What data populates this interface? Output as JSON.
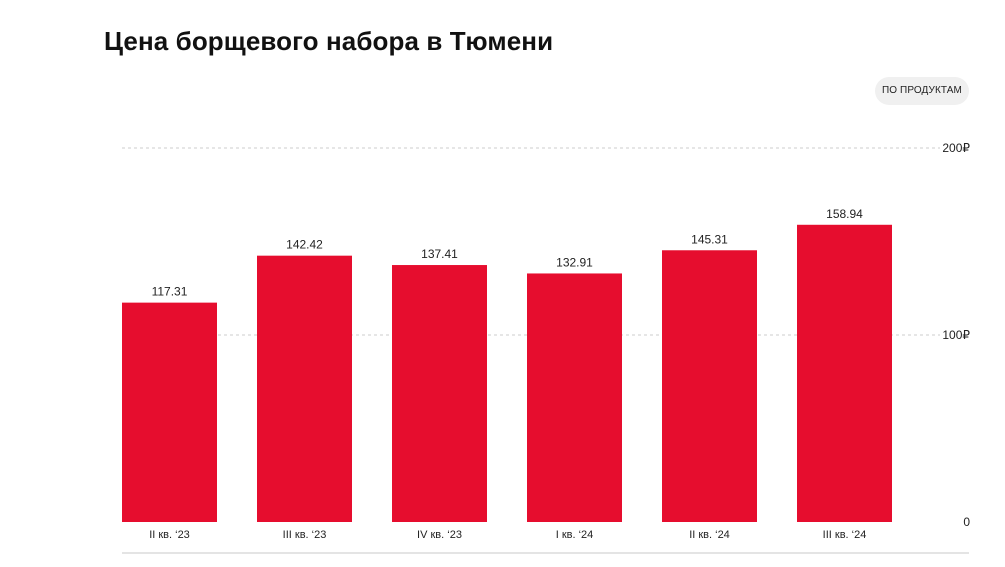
{
  "title": "Цена борщевого набора в Тюмени",
  "toggle_label": "ПО ПРОДУКТАМ",
  "colors": {
    "bar": "#e60d2e",
    "grid": "#cccccc",
    "baseline": "#c8c8c8",
    "text": "#222222"
  },
  "chart_data": {
    "type": "bar",
    "title": "Цена борщевого набора в Тюмени",
    "categories": [
      "II кв. ‘23",
      "III кв. ‘23",
      "IV кв. ‘23",
      "I кв. ‘24",
      "II кв. ‘24",
      "III кв. ‘24"
    ],
    "series": [
      {
        "values": [
          117.31,
          142.42,
          137.41,
          132.91,
          145.31,
          158.94
        ]
      }
    ],
    "value_labels": [
      "117.31",
      "142.42",
      "137.41",
      "132.91",
      "145.31",
      "158.94"
    ],
    "ylim": [
      0,
      200
    ],
    "yticks": [
      0,
      100,
      200
    ],
    "ytick_labels": [
      "0",
      "100₽",
      "200₽"
    ],
    "yaxis_position": "right",
    "grid": true,
    "xlabel": "",
    "ylabel": ""
  }
}
